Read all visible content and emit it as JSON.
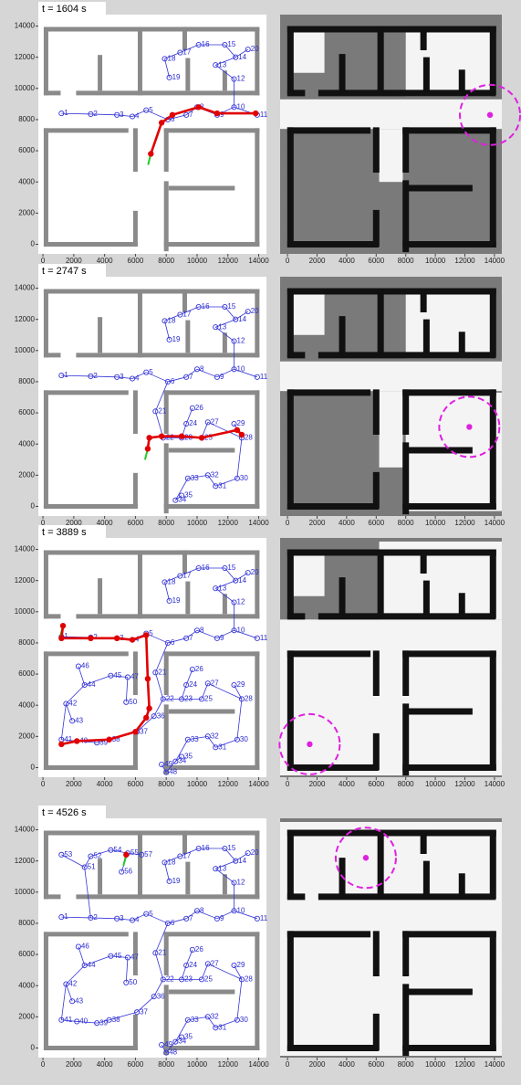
{
  "chart_data": [
    {
      "type": "graph",
      "title": "t = 1604 s",
      "xlim": [
        -300,
        14500
      ],
      "ylim": [
        -500,
        14500
      ],
      "xticks": [
        0,
        2000,
        4000,
        6000,
        8000,
        10000,
        12000,
        14000
      ],
      "yticks": [
        0,
        2000,
        4000,
        6000,
        8000,
        10000,
        12000,
        14000
      ],
      "node_ids": [
        1,
        2,
        3,
        4,
        5,
        6,
        7,
        8,
        9,
        10,
        11,
        12,
        13,
        14,
        15,
        16,
        17,
        18,
        19,
        20
      ],
      "node_x": [
        1200,
        3100,
        4800,
        5800,
        6700,
        8100,
        9300,
        10000,
        11300,
        12400,
        13900,
        12400,
        11200,
        12500,
        11800,
        10100,
        8900,
        7900,
        8200,
        13300
      ],
      "node_y": [
        8400,
        8350,
        8300,
        8200,
        8600,
        8000,
        8300,
        8800,
        8300,
        8800,
        8300,
        10600,
        11500,
        12000,
        12800,
        12800,
        12300,
        11900,
        10700,
        12500
      ],
      "path_x": [
        7000,
        7700,
        8400,
        10100,
        11300,
        13800
      ],
      "path_y": [
        5800,
        7800,
        8300,
        8800,
        8400,
        8400
      ]
    },
    {
      "type": "map",
      "xlim": [
        -500,
        14500
      ],
      "ylim": [
        -500,
        14500
      ],
      "xticks": [
        0,
        2000,
        4000,
        6000,
        8000,
        10000,
        12000,
        14000
      ],
      "target_x": 13700,
      "target_y": 8300
    },
    {
      "type": "graph",
      "title": "t = 2747 s",
      "xlim": [
        -300,
        14500
      ],
      "ylim": [
        -500,
        14500
      ],
      "xticks": [
        0,
        2000,
        4000,
        6000,
        8000,
        10000,
        12000,
        14000
      ],
      "yticks": [
        0,
        2000,
        4000,
        6000,
        8000,
        10000,
        12000,
        14000
      ],
      "node_ids": [
        1,
        2,
        3,
        4,
        5,
        6,
        7,
        8,
        9,
        10,
        11,
        12,
        13,
        14,
        15,
        16,
        17,
        18,
        19,
        20,
        21,
        22,
        23,
        24,
        25,
        26,
        27,
        28,
        29,
        30,
        31,
        32,
        33,
        34,
        35
      ],
      "node_x": [
        1200,
        3100,
        4800,
        5800,
        6700,
        8100,
        9300,
        10000,
        11300,
        12400,
        13900,
        12400,
        11200,
        12500,
        11800,
        10100,
        8900,
        7900,
        8200,
        13300,
        7300,
        7800,
        9000,
        9300,
        10300,
        9700,
        10700,
        12900,
        12400,
        12600,
        11200,
        10700,
        9400,
        8600,
        9000
      ],
      "node_y": [
        8400,
        8350,
        8300,
        8200,
        8600,
        8000,
        8300,
        8800,
        8300,
        8800,
        8300,
        10600,
        11500,
        12000,
        12800,
        12800,
        12300,
        11900,
        10700,
        12500,
        6100,
        4400,
        4400,
        5300,
        4400,
        6300,
        5400,
        4400,
        5300,
        1800,
        1300,
        2000,
        1800,
        400,
        700
      ],
      "path_x": [
        6800,
        6900,
        7700,
        9000,
        10300,
        12600,
        12900
      ],
      "path_y": [
        3700,
        4400,
        4500,
        4500,
        4400,
        4900,
        4600
      ]
    },
    {
      "type": "map",
      "xlim": [
        -500,
        14500
      ],
      "ylim": [
        -500,
        14500
      ],
      "xticks": [
        0,
        2000,
        4000,
        6000,
        8000,
        10000,
        12000,
        14000
      ],
      "target_x": 12300,
      "target_y": 5100
    },
    {
      "type": "graph",
      "title": "t = 3889 s",
      "xlim": [
        -300,
        14500
      ],
      "ylim": [
        -500,
        14500
      ],
      "xticks": [
        0,
        2000,
        4000,
        6000,
        8000,
        10000,
        12000,
        14000
      ],
      "yticks": [
        0,
        2000,
        4000,
        6000,
        8000,
        10000,
        12000,
        14000
      ],
      "node_ids": [
        1,
        2,
        3,
        4,
        5,
        6,
        7,
        8,
        9,
        10,
        11,
        12,
        13,
        14,
        15,
        16,
        17,
        18,
        19,
        20,
        21,
        22,
        23,
        24,
        25,
        26,
        27,
        28,
        29,
        30,
        31,
        32,
        33,
        34,
        35,
        36,
        37,
        38,
        39,
        40,
        41,
        42,
        43,
        44,
        45,
        46,
        47,
        48,
        49,
        50
      ],
      "node_x": [
        1200,
        3100,
        4800,
        5800,
        6700,
        8100,
        9300,
        10000,
        11300,
        12400,
        13900,
        12400,
        11200,
        12500,
        11800,
        10100,
        8900,
        7900,
        8200,
        13300,
        7300,
        7800,
        9000,
        9300,
        10300,
        9700,
        10700,
        12900,
        12400,
        12600,
        11200,
        10700,
        9400,
        8600,
        9000,
        7200,
        6100,
        4300,
        3500,
        2200,
        1200,
        1500,
        1900,
        2700,
        4400,
        2300,
        5500,
        8000,
        7700,
        5400
      ],
      "node_y": [
        8400,
        8350,
        8300,
        8200,
        8600,
        8000,
        8300,
        8800,
        8300,
        8800,
        8300,
        10600,
        11500,
        12000,
        12800,
        12800,
        12300,
        11900,
        10700,
        12500,
        6100,
        4400,
        4400,
        5300,
        4400,
        6300,
        5400,
        4400,
        5300,
        1800,
        1300,
        2000,
        1800,
        400,
        700,
        3300,
        2300,
        1800,
        1600,
        1700,
        1800,
        4100,
        3000,
        5300,
        5900,
        6500,
        5800,
        -300,
        200,
        4200
      ],
      "path_x": [
        1300,
        1200,
        3100,
        4800,
        5800,
        6700,
        6800,
        6900,
        6700,
        6000,
        4300,
        2200,
        1200
      ],
      "path_y": [
        9100,
        8300,
        8300,
        8300,
        8200,
        8500,
        5700,
        3800,
        3200,
        2300,
        1800,
        1700,
        1500
      ]
    },
    {
      "type": "map",
      "xlim": [
        -500,
        14500
      ],
      "ylim": [
        -500,
        14500
      ],
      "xticks": [
        0,
        2000,
        4000,
        6000,
        8000,
        10000,
        12000,
        14000
      ],
      "target_x": 1500,
      "target_y": 1500
    },
    {
      "type": "graph",
      "title": "t = 4526 s",
      "xlim": [
        -300,
        14500
      ],
      "ylim": [
        -500,
        14500
      ],
      "xticks": [
        0,
        2000,
        4000,
        6000,
        8000,
        10000,
        12000,
        14000
      ],
      "yticks": [
        0,
        2000,
        4000,
        6000,
        8000,
        10000,
        12000,
        14000
      ],
      "node_ids": [
        1,
        2,
        3,
        4,
        5,
        6,
        7,
        8,
        9,
        10,
        11,
        12,
        13,
        14,
        15,
        16,
        17,
        18,
        19,
        20,
        21,
        22,
        23,
        24,
        25,
        26,
        27,
        28,
        29,
        30,
        31,
        32,
        33,
        34,
        35,
        36,
        37,
        38,
        39,
        40,
        41,
        42,
        43,
        44,
        45,
        46,
        47,
        48,
        49,
        50,
        51,
        52,
        53,
        54,
        55,
        56,
        57
      ],
      "node_x": [
        1200,
        3100,
        4800,
        5800,
        6700,
        8100,
        9300,
        10000,
        11300,
        12400,
        13900,
        12400,
        11200,
        12500,
        11800,
        10100,
        8900,
        7900,
        8200,
        13300,
        7300,
        7800,
        9000,
        9300,
        10300,
        9700,
        10700,
        12900,
        12400,
        12600,
        11200,
        10700,
        9400,
        8600,
        9000,
        7200,
        6100,
        4300,
        3500,
        2200,
        1200,
        1500,
        1900,
        2700,
        4400,
        2300,
        5500,
        8000,
        7700,
        5400,
        2700,
        3100,
        1200,
        4400,
        5500,
        5100,
        6400
      ],
      "node_y": [
        8400,
        8350,
        8300,
        8200,
        8600,
        8000,
        8300,
        8800,
        8300,
        8800,
        8300,
        10600,
        11500,
        12000,
        12800,
        12800,
        12300,
        11900,
        10700,
        12500,
        6100,
        4400,
        4400,
        5300,
        4400,
        6300,
        5400,
        4400,
        5300,
        1800,
        1300,
        2000,
        1800,
        400,
        700,
        3300,
        2300,
        1800,
        1600,
        1700,
        1800,
        4100,
        3000,
        5300,
        5900,
        6500,
        5800,
        -300,
        200,
        4200,
        11600,
        12300,
        12400,
        12700,
        12500,
        11300,
        12400
      ],
      "path_x": [
        5400
      ],
      "path_y": [
        12400
      ]
    },
    {
      "type": "map",
      "xlim": [
        -500,
        14500
      ],
      "ylim": [
        -500,
        14500
      ],
      "xticks": [
        0,
        2000,
        4000,
        6000,
        8000,
        10000,
        12000,
        14000
      ],
      "target_x": 5300,
      "target_y": 12200
    }
  ]
}
